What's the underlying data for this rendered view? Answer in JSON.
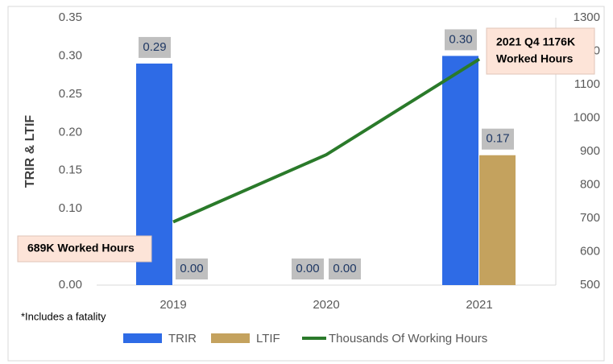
{
  "chart_data": {
    "type": "bar",
    "y_label": "TRIR & LTIF",
    "categories": [
      "2019",
      "2020",
      "2021"
    ],
    "series": [
      {
        "name": "TRIR",
        "color": "#2e6be6",
        "values": [
          0.29,
          0,
          0.3
        ],
        "value_labels": [
          "0.29",
          "0.00",
          "0.30"
        ]
      },
      {
        "name": "LTIF",
        "color": "#c4a25e",
        "values": [
          0,
          0,
          0.17
        ],
        "value_labels": [
          "0.00",
          "0.00",
          "0.17"
        ]
      },
      {
        "name": "Thousands Of Working Hours",
        "type": "line",
        "axis": "y2",
        "color": "#2a7a2a",
        "values": [
          689,
          890,
          1176
        ]
      }
    ],
    "ylim": [
      0,
      0.35
    ],
    "yticks": [
      {
        "value": 0,
        "label": "0.00"
      },
      {
        "value": 0.05,
        "label": "0.05"
      },
      {
        "value": 0.1,
        "label": "0.10"
      },
      {
        "value": 0.15,
        "label": "0.15"
      },
      {
        "value": 0.2,
        "label": "0.20"
      },
      {
        "value": 0.25,
        "label": "0.25"
      },
      {
        "value": 0.3,
        "label": "0.30"
      },
      {
        "value": 0.35,
        "label": "0.35"
      }
    ],
    "y2lim": [
      500,
      1300
    ],
    "y2ticks": [
      500,
      600,
      700,
      800,
      900,
      1000,
      1100,
      1200,
      1300
    ],
    "annotations": [
      {
        "lines": [
          "2021 Q4 1176K",
          "Worked Hours"
        ]
      },
      {
        "lines": [
          "689K Worked Hours"
        ]
      }
    ],
    "footnote": "*Includes a fatality",
    "legend": "bottom"
  }
}
